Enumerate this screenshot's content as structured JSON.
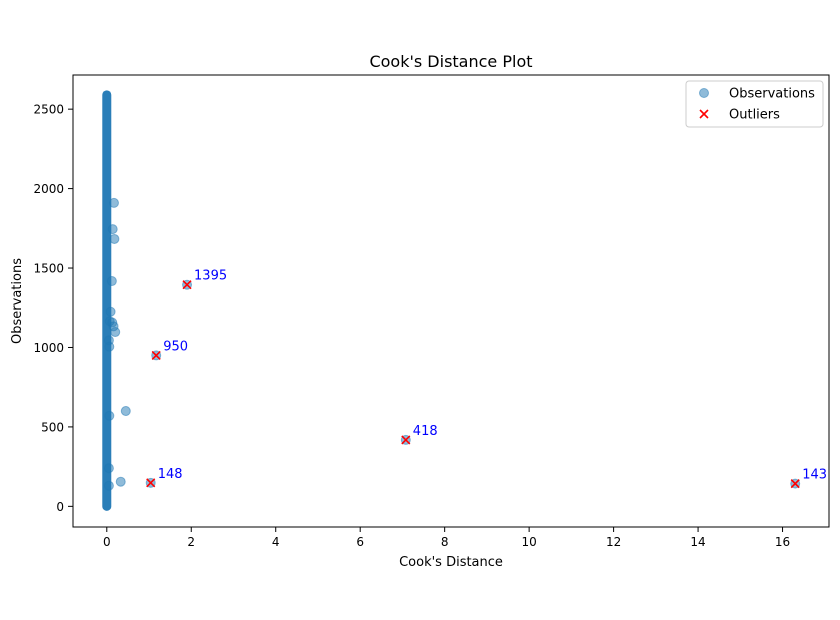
{
  "chart_data": {
    "type": "scatter",
    "title": "Cook's Distance Plot",
    "xlabel": "Cook's Distance",
    "ylabel": "Observations",
    "xlim": [
      -0.8,
      17.1
    ],
    "ylim": [
      -130,
      2715
    ],
    "xticks": [
      0,
      2,
      4,
      6,
      8,
      10,
      12,
      14,
      16
    ],
    "yticks": [
      0,
      500,
      1000,
      1500,
      2000,
      2500
    ],
    "grid": false,
    "legend": {
      "placement": "top-right",
      "entries": [
        {
          "label": "Observations",
          "marker": "circle",
          "color": "#1f77b4"
        },
        {
          "label": "Outliers",
          "marker": "x",
          "color": "#ff0000"
        }
      ]
    },
    "colors": {
      "observations": "#1f77b4",
      "outliers": "#ff0000",
      "annotations": "#0000ff"
    },
    "observation_band": {
      "x": 0.0,
      "y_range": [
        0,
        2590
      ]
    },
    "series": [
      {
        "name": "Observations",
        "points": [
          {
            "x": 0.17,
            "y": 1910
          },
          {
            "x": 0.14,
            "y": 1745
          },
          {
            "x": 0.18,
            "y": 1683
          },
          {
            "x": 0.12,
            "y": 1418
          },
          {
            "x": 0.09,
            "y": 1225
          },
          {
            "x": 0.07,
            "y": 1165
          },
          {
            "x": 0.13,
            "y": 1157
          },
          {
            "x": 0.16,
            "y": 1133
          },
          {
            "x": 0.2,
            "y": 1097
          },
          {
            "x": 0.05,
            "y": 1045
          },
          {
            "x": 0.06,
            "y": 1005
          },
          {
            "x": 0.45,
            "y": 600
          },
          {
            "x": 0.06,
            "y": 570
          },
          {
            "x": 0.05,
            "y": 240
          },
          {
            "x": 0.33,
            "y": 155
          },
          {
            "x": 0.05,
            "y": 130
          },
          {
            "x": 1.9,
            "y": 1395
          },
          {
            "x": 1.17,
            "y": 950
          },
          {
            "x": 7.08,
            "y": 418
          },
          {
            "x": 1.04,
            "y": 148
          },
          {
            "x": 16.3,
            "y": 143
          }
        ]
      },
      {
        "name": "Outliers",
        "points": [
          {
            "x": 1.9,
            "y": 1395,
            "label": "1395"
          },
          {
            "x": 1.17,
            "y": 950,
            "label": "950"
          },
          {
            "x": 7.08,
            "y": 418,
            "label": "418"
          },
          {
            "x": 1.04,
            "y": 148,
            "label": "148"
          },
          {
            "x": 16.3,
            "y": 143,
            "label": "143"
          }
        ]
      }
    ]
  }
}
